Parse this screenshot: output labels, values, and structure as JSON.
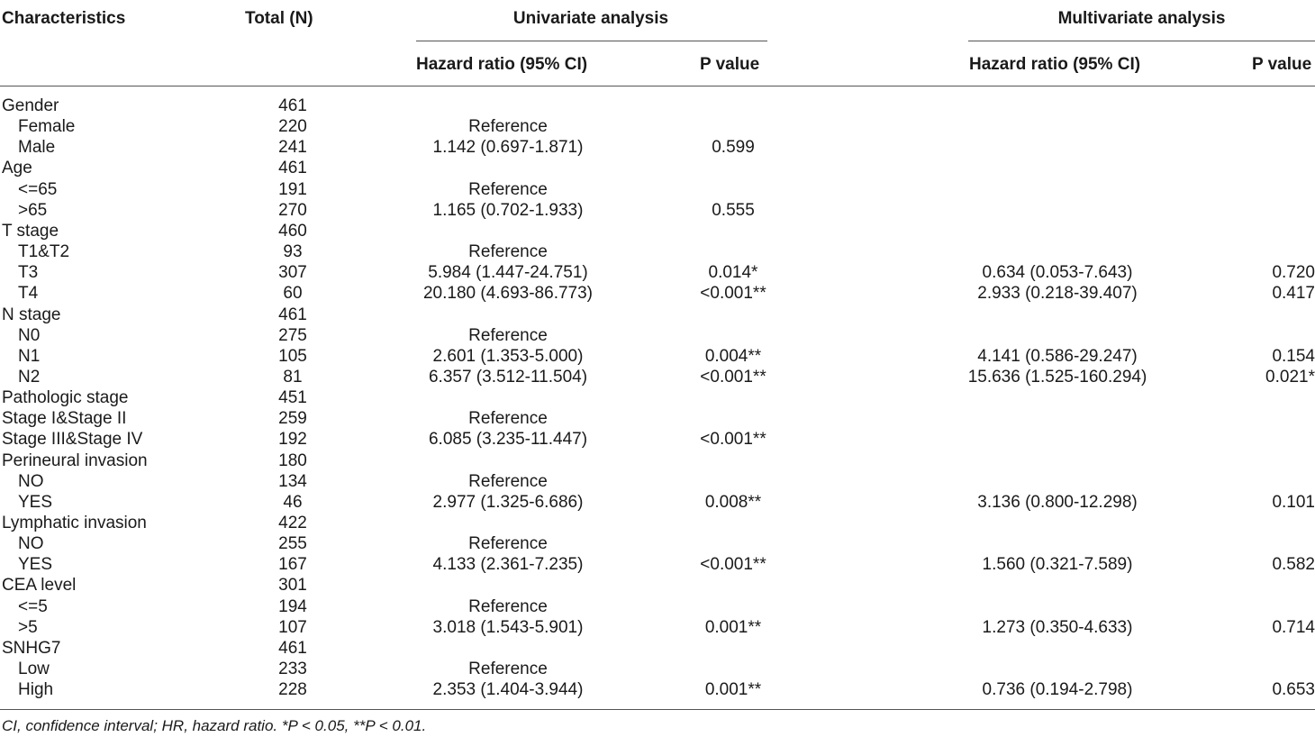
{
  "header": {
    "characteristics": "Characteristics",
    "total": "Total (N)",
    "univariate": "Univariate analysis",
    "multivariate": "Multivariate analysis",
    "hr_uni": "Hazard ratio (95% CI)",
    "p_uni": "P value",
    "hr_multi": "Hazard ratio (95% CI)",
    "p_multi": "P value"
  },
  "rows": [
    {
      "label": "Gender",
      "indent": false,
      "total": "461",
      "uni_hr": "",
      "uni_p": "",
      "multi_hr": "",
      "multi_p": ""
    },
    {
      "label": "Female",
      "indent": true,
      "total": "220",
      "uni_hr": "Reference",
      "uni_p": "",
      "multi_hr": "",
      "multi_p": ""
    },
    {
      "label": "Male",
      "indent": true,
      "total": "241",
      "uni_hr": "1.142 (0.697-1.871)",
      "uni_p": "0.599",
      "multi_hr": "",
      "multi_p": ""
    },
    {
      "label": "Age",
      "indent": false,
      "total": "461",
      "uni_hr": "",
      "uni_p": "",
      "multi_hr": "",
      "multi_p": ""
    },
    {
      "label": "<=65",
      "indent": true,
      "total": "191",
      "uni_hr": "Reference",
      "uni_p": "",
      "multi_hr": "",
      "multi_p": ""
    },
    {
      "label": ">65",
      "indent": true,
      "total": "270",
      "uni_hr": "1.165 (0.702-1.933)",
      "uni_p": "0.555",
      "multi_hr": "",
      "multi_p": ""
    },
    {
      "label": "T stage",
      "indent": false,
      "total": "460",
      "uni_hr": "",
      "uni_p": "",
      "multi_hr": "",
      "multi_p": ""
    },
    {
      "label": "T1&T2",
      "indent": true,
      "total": "93",
      "uni_hr": "Reference",
      "uni_p": "",
      "multi_hr": "",
      "multi_p": ""
    },
    {
      "label": "T3",
      "indent": true,
      "total": "307",
      "uni_hr": "5.984 (1.447-24.751)",
      "uni_p": "0.014*",
      "multi_hr": "0.634 (0.053-7.643)",
      "multi_p": "0.720"
    },
    {
      "label": "T4",
      "indent": true,
      "total": "60",
      "uni_hr": "20.180 (4.693-86.773)",
      "uni_p": "<0.001**",
      "multi_hr": "2.933 (0.218-39.407)",
      "multi_p": "0.417"
    },
    {
      "label": "N stage",
      "indent": false,
      "total": "461",
      "uni_hr": "",
      "uni_p": "",
      "multi_hr": "",
      "multi_p": ""
    },
    {
      "label": "N0",
      "indent": true,
      "total": "275",
      "uni_hr": "Reference",
      "uni_p": "",
      "multi_hr": "",
      "multi_p": ""
    },
    {
      "label": "N1",
      "indent": true,
      "total": "105",
      "uni_hr": "2.601 (1.353-5.000)",
      "uni_p": "0.004**",
      "multi_hr": "4.141 (0.586-29.247)",
      "multi_p": "0.154"
    },
    {
      "label": "N2",
      "indent": true,
      "total": "81",
      "uni_hr": "6.357 (3.512-11.504)",
      "uni_p": "<0.001**",
      "multi_hr": "15.636 (1.525-160.294)",
      "multi_p": "0.021*"
    },
    {
      "label": "Pathologic stage",
      "indent": false,
      "total": "451",
      "uni_hr": "",
      "uni_p": "",
      "multi_hr": "",
      "multi_p": ""
    },
    {
      "label": "Stage I&Stage II",
      "indent": false,
      "total": "259",
      "uni_hr": "Reference",
      "uni_p": "",
      "multi_hr": "",
      "multi_p": ""
    },
    {
      "label": "Stage III&Stage IV",
      "indent": false,
      "total": "192",
      "uni_hr": "6.085 (3.235-11.447)",
      "uni_p": "<0.001**",
      "multi_hr": "",
      "multi_p": ""
    },
    {
      "label": "Perineural invasion",
      "indent": false,
      "total": "180",
      "uni_hr": "",
      "uni_p": "",
      "multi_hr": "",
      "multi_p": ""
    },
    {
      "label": "NO",
      "indent": true,
      "total": "134",
      "uni_hr": "Reference",
      "uni_p": "",
      "multi_hr": "",
      "multi_p": ""
    },
    {
      "label": "YES",
      "indent": true,
      "total": "46",
      "uni_hr": "2.977 (1.325-6.686)",
      "uni_p": "0.008**",
      "multi_hr": "3.136 (0.800-12.298)",
      "multi_p": "0.101"
    },
    {
      "label": "Lymphatic invasion",
      "indent": false,
      "total": "422",
      "uni_hr": "",
      "uni_p": "",
      "multi_hr": "",
      "multi_p": ""
    },
    {
      "label": "NO",
      "indent": true,
      "total": "255",
      "uni_hr": "Reference",
      "uni_p": "",
      "multi_hr": "",
      "multi_p": ""
    },
    {
      "label": "YES",
      "indent": true,
      "total": "167",
      "uni_hr": "4.133 (2.361-7.235)",
      "uni_p": "<0.001**",
      "multi_hr": "1.560 (0.321-7.589)",
      "multi_p": "0.582"
    },
    {
      "label": "CEA level",
      "indent": false,
      "total": "301",
      "uni_hr": "",
      "uni_p": "",
      "multi_hr": "",
      "multi_p": ""
    },
    {
      "label": "<=5",
      "indent": true,
      "total": "194",
      "uni_hr": "Reference",
      "uni_p": "",
      "multi_hr": "",
      "multi_p": ""
    },
    {
      "label": ">5",
      "indent": true,
      "total": "107",
      "uni_hr": "3.018 (1.543-5.901)",
      "uni_p": "0.001**",
      "multi_hr": "1.273 (0.350-4.633)",
      "multi_p": "0.714"
    },
    {
      "label": "SNHG7",
      "indent": false,
      "total": "461",
      "uni_hr": "",
      "uni_p": "",
      "multi_hr": "",
      "multi_p": ""
    },
    {
      "label": "Low",
      "indent": true,
      "total": "233",
      "uni_hr": "Reference",
      "uni_p": "",
      "multi_hr": "",
      "multi_p": ""
    },
    {
      "label": "High",
      "indent": true,
      "total": "228",
      "uni_hr": "2.353 (1.404-3.944)",
      "uni_p": "0.001**",
      "multi_hr": "0.736 (0.194-2.798)",
      "multi_p": "0.653"
    }
  ],
  "footnote": "CI, confidence interval; HR, hazard ratio. *P < 0.05, **P < 0.01."
}
